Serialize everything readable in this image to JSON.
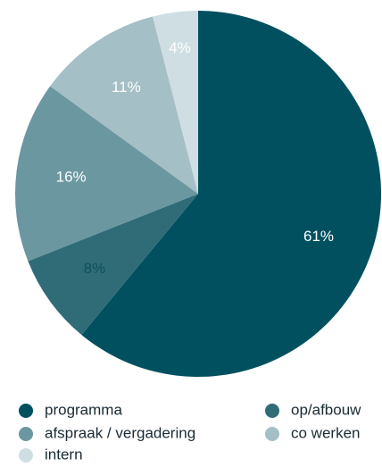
{
  "chart_data": {
    "type": "pie",
    "categories": [
      "programma",
      "op/afbouw",
      "afspraak / vergadering",
      "co werken",
      "intern"
    ],
    "values": [
      61,
      8,
      16,
      11,
      4
    ],
    "value_labels": [
      "61%",
      "8%",
      "16%",
      "11%",
      "4%"
    ],
    "colors": [
      "#00505f",
      "#2f6c78",
      "#6b97a1",
      "#a4bfc5",
      "#cfdee2"
    ],
    "label_colors": [
      "#ffffff",
      "#0f4f5b",
      "#ffffff",
      "#ffffff",
      "#ffffff"
    ],
    "legend": "bottom"
  }
}
